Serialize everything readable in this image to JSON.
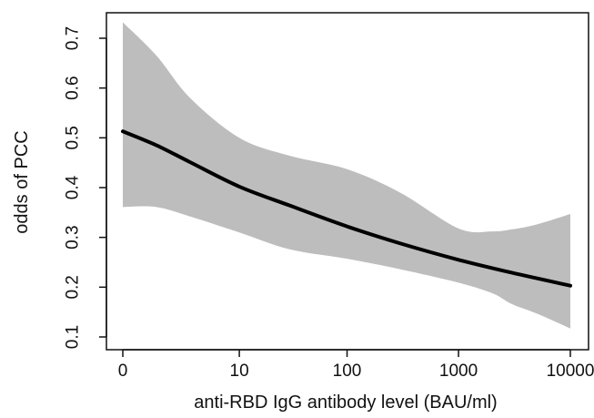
{
  "chart_data": {
    "type": "line",
    "title": "",
    "xlabel": "anti-RBD IgG antibody level (BAU/ml)",
    "ylabel": "odds of PCC",
    "x_scale": "log10(x+1)",
    "x_ticks": [
      {
        "value": 0,
        "label": "0"
      },
      {
        "value": 10,
        "label": "10"
      },
      {
        "value": 100,
        "label": "100"
      },
      {
        "value": 1000,
        "label": "1000"
      },
      {
        "value": 10000,
        "label": "10000"
      }
    ],
    "y_ticks": [
      {
        "value": 0.1,
        "label": "0.1"
      },
      {
        "value": 0.2,
        "label": "0.2"
      },
      {
        "value": 0.3,
        "label": "0.3"
      },
      {
        "value": 0.4,
        "label": "0.4"
      },
      {
        "value": 0.5,
        "label": "0.5"
      },
      {
        "value": 0.6,
        "label": "0.6"
      },
      {
        "value": 0.7,
        "label": "0.7"
      }
    ],
    "xlim": [
      0,
      10000
    ],
    "ylim": [
      0.1,
      0.7
    ],
    "grid": false,
    "legend": "none",
    "colors": {
      "line": "#000000",
      "band": "#bdbdbd",
      "axis": "#111111"
    },
    "series": [
      {
        "x": [
          0,
          1,
          3,
          10,
          30,
          100,
          300,
          1000,
          3000,
          10000
        ],
        "y": [
          0.513,
          0.485,
          0.451,
          0.402,
          0.364,
          0.322,
          0.288,
          0.255,
          0.229,
          0.203
        ]
      }
    ],
    "ci_band": {
      "x": [
        0,
        1,
        3,
        10,
        30,
        100,
        300,
        1000,
        2000,
        3000,
        5000,
        10000
      ],
      "upper": [
        0.732,
        0.665,
        0.58,
        0.5,
        0.464,
        0.437,
        0.39,
        0.318,
        0.312,
        0.316,
        0.326,
        0.347
      ],
      "lower": [
        0.361,
        0.361,
        0.342,
        0.31,
        0.276,
        0.257,
        0.236,
        0.209,
        0.188,
        0.166,
        0.147,
        0.117
      ]
    }
  }
}
